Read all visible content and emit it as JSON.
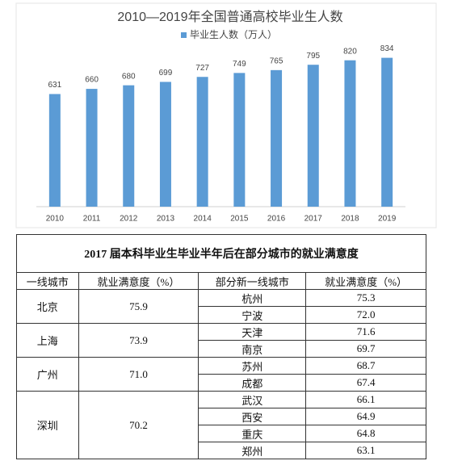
{
  "chart_data": {
    "type": "bar",
    "title": "2010—2019年全国普通高校毕业生人数",
    "categories": [
      "2010",
      "2011",
      "2012",
      "2013",
      "2014",
      "2015",
      "2016",
      "2017",
      "2018",
      "2019"
    ],
    "series": [
      {
        "name": "毕业生人数（万人）",
        "color": "#5b9bd5",
        "values": [
          631,
          660,
          680,
          699,
          727,
          749,
          765,
          795,
          820,
          834
        ]
      }
    ],
    "ylim": [
      0,
      900
    ]
  },
  "table": {
    "title": "2017 届本科毕业生毕业半年后在部分城市的就业满意度",
    "headers": [
      "一线城市",
      "就业满意度（%）",
      "部分新一线城市",
      "就业满意度（%）"
    ],
    "groups": [
      {
        "city": "北京",
        "score": "75.9",
        "subs": [
          {
            "city": "杭州",
            "score": "75.3"
          },
          {
            "city": "宁波",
            "score": "72.0"
          }
        ]
      },
      {
        "city": "上海",
        "score": "73.9",
        "subs": [
          {
            "city": "天津",
            "score": "71.6"
          },
          {
            "city": "南京",
            "score": "69.7"
          }
        ]
      },
      {
        "city": "广州",
        "score": "71.0",
        "subs": [
          {
            "city": "苏州",
            "score": "68.7"
          },
          {
            "city": "成都",
            "score": "67.4"
          }
        ]
      },
      {
        "city": "深圳",
        "score": "70.2",
        "subs": [
          {
            "city": "武汉",
            "score": "66.1"
          },
          {
            "city": "西安",
            "score": "64.9"
          },
          {
            "city": "重庆",
            "score": "64.8"
          },
          {
            "city": "郑州",
            "score": "63.1"
          }
        ]
      }
    ]
  }
}
